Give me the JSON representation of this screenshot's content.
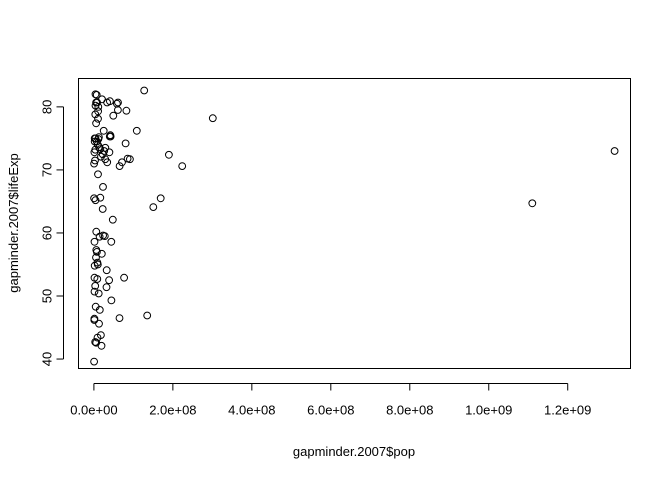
{
  "chart_data": {
    "type": "scatter",
    "title": "",
    "xlabel": "gapminder.2007$pop",
    "ylabel": "gapminder.2007$lifeExp",
    "xlim": [
      -39000000,
      1359000000
    ],
    "ylim": [
      38.5,
      84.5
    ],
    "x_ticks": [
      0,
      200000000,
      400000000,
      600000000,
      800000000,
      1000000000,
      1200000000
    ],
    "x_tick_labels": [
      "0.0e+00",
      "2.0e+08",
      "4.0e+08",
      "6.0e+08",
      "8.0e+08",
      "1.0e+09",
      "1.2e+09"
    ],
    "y_ticks": [
      40,
      50,
      60,
      70,
      80
    ],
    "y_tick_labels": [
      "40",
      "50",
      "60",
      "70",
      "80"
    ],
    "grid": false,
    "legend": "none",
    "marker": "open-circle",
    "marker_color": "#000000",
    "points": [
      [
        1318683096,
        73.0
      ],
      [
        1110396331,
        64.7
      ],
      [
        301139947,
        78.2
      ],
      [
        223547000,
        70.6
      ],
      [
        190010647,
        72.4
      ],
      [
        169270617,
        65.5
      ],
      [
        150448339,
        64.1
      ],
      [
        135031164,
        46.9
      ],
      [
        127467972,
        82.6
      ],
      [
        108700891,
        76.2
      ],
      [
        91077287,
        71.7
      ],
      [
        85262356,
        71.8
      ],
      [
        82400996,
        79.4
      ],
      [
        80264543,
        74.2
      ],
      [
        76511887,
        52.9
      ],
      [
        71158647,
        71.2
      ],
      [
        65068149,
        70.6
      ],
      [
        64808000,
        46.5
      ],
      [
        61083916,
        80.7
      ],
      [
        60776238,
        79.5
      ],
      [
        58147733,
        80.5
      ],
      [
        49044790,
        78.6
      ],
      [
        47761980,
        62.1
      ],
      [
        44227550,
        49.3
      ],
      [
        43997828,
        58.6
      ],
      [
        42276000,
        75.3
      ],
      [
        41459000,
        75.5
      ],
      [
        40448191,
        80.9
      ],
      [
        40301927,
        75.3
      ],
      [
        39379358,
        72.8
      ],
      [
        38518241,
        52.5
      ],
      [
        33757175,
        71.2
      ],
      [
        33390141,
        80.7
      ],
      [
        32467270,
        54.1
      ],
      [
        31889923,
        51.4
      ],
      [
        28901790,
        73.5
      ],
      [
        28674757,
        71.7
      ],
      [
        27499638,
        59.5
      ],
      [
        26084662,
        73.0
      ],
      [
        24821286,
        76.2
      ],
      [
        23301725,
        59.6
      ],
      [
        23174294,
        67.3
      ],
      [
        22276056,
        72.5
      ],
      [
        22211743,
        63.8
      ],
      [
        20434176,
        81.2
      ],
      [
        19951656,
        56.7
      ],
      [
        19314747,
        42.1
      ],
      [
        18013409,
        72.1
      ],
      [
        17696293,
        43.8
      ],
      [
        16284741,
        65.6
      ],
      [
        16226122,
        73.3
      ],
      [
        14326203,
        59.4
      ],
      [
        13755680,
        73.6
      ],
      [
        12894865,
        45.6
      ],
      [
        12572928,
        75.2
      ],
      [
        12267493,
        50.4
      ],
      [
        11416987,
        74.9
      ],
      [
        11170893,
        80.0
      ],
      [
        10706290,
        79.3
      ],
      [
        10317461,
        78.1
      ],
      [
        10276158,
        69.3
      ],
      [
        9956108,
        74.0
      ],
      [
        8502814,
        52.7
      ],
      [
        8199783,
        80.7
      ],
      [
        7322858,
        74.5
      ],
      [
        7033750,
        81.9
      ],
      [
        6144562,
        60.2
      ],
      [
        5675356,
        80.7
      ],
      [
        5468120,
        77.4
      ],
      [
        4553009,
        48.3
      ],
      [
        4133884,
        80.2
      ],
      [
        4109086,
        82.0
      ],
      [
        3942491,
        75.0
      ],
      [
        3600523,
        78.8
      ],
      [
        2780132,
        71.5
      ],
      [
        1250140,
        72.8
      ],
      [
        1133066,
        46.2
      ],
      [
        1454867,
        58.6
      ],
      [
        1639131,
        50.7
      ],
      [
        2055080,
        75.0
      ],
      [
        551201,
        71.0
      ],
      [
        4018332,
        65.2
      ],
      [
        5701579,
        42.6
      ],
      [
        8860588,
        55.3
      ],
      [
        6053193,
        57.3
      ],
      [
        3270065,
        51.6
      ],
      [
        2012649,
        54.8
      ],
      [
        1472041,
        52.9
      ],
      [
        496374,
        65.5
      ],
      [
        2130000,
        74.5
      ],
      [
        3447496,
        73.2
      ],
      [
        5238460,
        56.1
      ],
      [
        3332000,
        42.7
      ],
      [
        1200000,
        46.4
      ],
      [
        9100000,
        43.4
      ],
      [
        500000,
        39.6
      ],
      [
        7500000,
        57.0
      ],
      [
        15000000,
        47.8
      ],
      [
        9800000,
        55.0
      ]
    ]
  }
}
